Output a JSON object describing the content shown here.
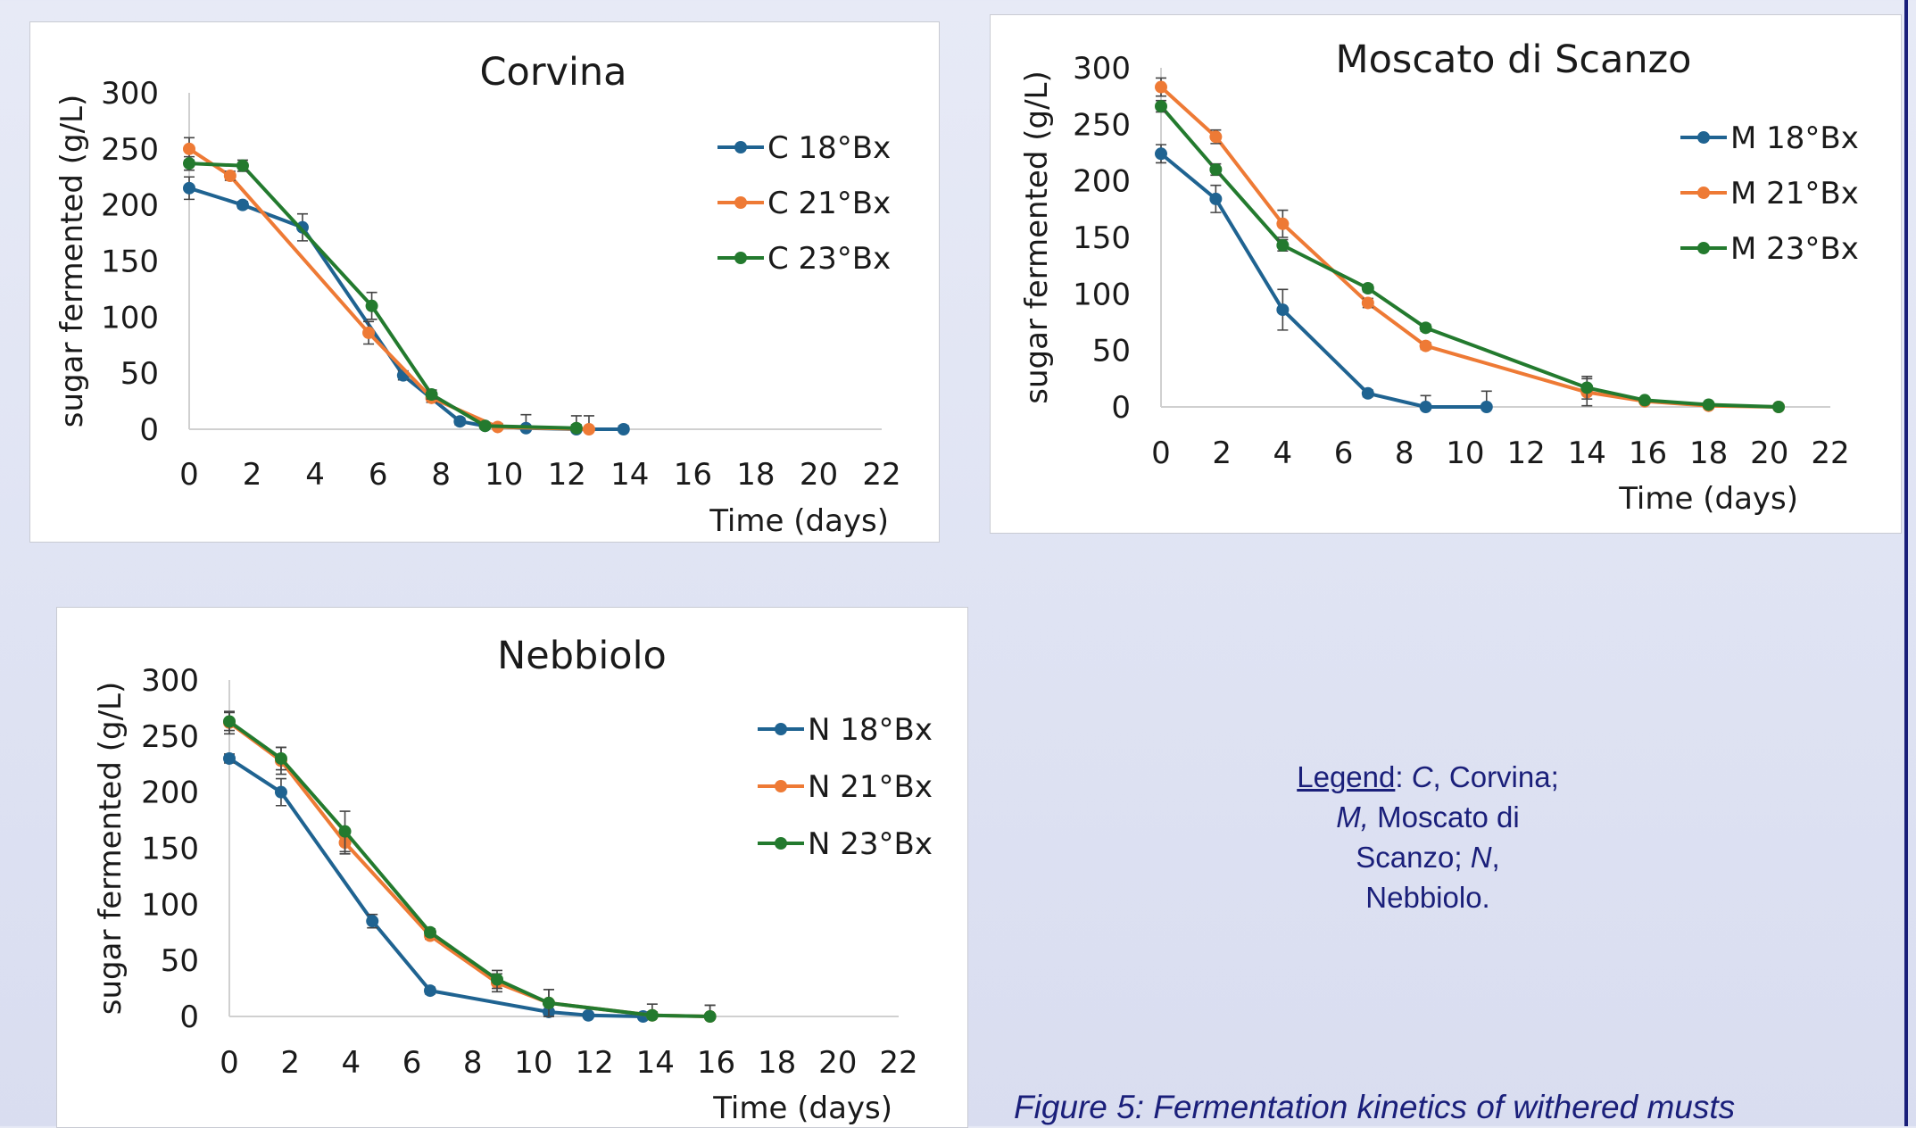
{
  "legend_note": {
    "key": "Legend",
    "colon": ": ",
    "c_abbr": "C",
    "c_name": ", Corvina;",
    "m_abbr": "M,",
    "m_name": " Moscato di",
    "line3": "Scanzo; ",
    "n_abbr": "N",
    "n_comma": ",",
    "line4": "Nebbiolo."
  },
  "caption": "Figure 5: Fermentation kinetics of withered musts",
  "colors": {
    "18": "#1f6391",
    "21": "#ee7a35",
    "23": "#237a2e",
    "accent": "#1a1f7a"
  },
  "chart_data": [
    {
      "type": "line",
      "title": "Corvina",
      "xlabel": "Time (days)",
      "ylabel": "sugar fermented (g/L)",
      "xlim": [
        0,
        22
      ],
      "ylim": [
        0,
        300
      ],
      "xticks": [
        "0",
        "2",
        "4",
        "6",
        "8",
        "10",
        "12",
        "14",
        "16",
        "18",
        "20",
        "22"
      ],
      "yticks": [
        "0",
        "50",
        "100",
        "150",
        "200",
        "250",
        "300"
      ],
      "legend_position": "right",
      "series": [
        {
          "name": "C 18°Bx",
          "color": "#1f6391",
          "x": [
            0,
            1.7,
            3.6,
            6.8,
            8.6,
            9.4,
            10.7,
            12.3,
            13.8
          ],
          "y": [
            215,
            200,
            180,
            48,
            7,
            3,
            1,
            0,
            0
          ],
          "err": [
            10,
            3,
            12,
            4,
            3,
            2,
            12,
            12,
            3
          ]
        },
        {
          "name": "C 21°Bx",
          "color": "#ee7a35",
          "x": [
            0,
            1.3,
            5.7,
            7.7,
            9.8,
            12.7
          ],
          "y": [
            250,
            226,
            86,
            28,
            2,
            0
          ],
          "err": [
            10,
            4,
            10,
            4,
            3,
            12
          ]
        },
        {
          "name": "C 23°Bx",
          "color": "#237a2e",
          "x": [
            0,
            1.7,
            5.8,
            7.7,
            9.4,
            12.3
          ],
          "y": [
            237,
            235,
            110,
            31,
            3,
            1
          ],
          "err": [
            6,
            5,
            12,
            4,
            2,
            3
          ]
        }
      ]
    },
    {
      "type": "line",
      "title": "Moscato di Scanzo",
      "xlabel": "Time (days)",
      "ylabel": "sugar fermented (g/L)",
      "xlim": [
        0,
        22
      ],
      "ylim": [
        0,
        300
      ],
      "xticks": [
        "0",
        "2",
        "4",
        "6",
        "8",
        "10",
        "12",
        "14",
        "16",
        "18",
        "20",
        "22"
      ],
      "yticks": [
        "0",
        "50",
        "100",
        "150",
        "200",
        "250",
        "300"
      ],
      "legend_position": "right",
      "series": [
        {
          "name": "M 18°Bx",
          "color": "#1f6391",
          "x": [
            0,
            1.8,
            4.0,
            6.8,
            8.7,
            10.7
          ],
          "y": [
            224,
            184,
            86,
            12,
            0,
            0
          ],
          "err": [
            8,
            12,
            18,
            3,
            10,
            14
          ]
        },
        {
          "name": "M 21°Bx",
          "color": "#ee7a35",
          "x": [
            0,
            1.8,
            4.0,
            6.8,
            8.7,
            14.0,
            15.9,
            18.0,
            20.3
          ],
          "y": [
            283,
            239,
            162,
            92,
            54,
            13,
            5,
            1,
            0
          ],
          "err": [
            8,
            6,
            12,
            4,
            3,
            12,
            2,
            2,
            2
          ]
        },
        {
          "name": "M 23°Bx",
          "color": "#237a2e",
          "x": [
            0,
            1.8,
            4.0,
            6.8,
            8.7,
            14.0,
            15.9,
            18.0,
            20.3
          ],
          "y": [
            266,
            210,
            143,
            105,
            70,
            17,
            6,
            2,
            0
          ],
          "err": [
            5,
            5,
            5,
            3,
            3,
            10,
            2,
            2,
            2
          ]
        }
      ]
    },
    {
      "type": "line",
      "title": "Nebbiolo",
      "xlabel": "Time (days)",
      "ylabel": "sugar fermented (g/L)",
      "xlim": [
        0,
        22
      ],
      "ylim": [
        0,
        300
      ],
      "xticks": [
        "0",
        "2",
        "4",
        "6",
        "8",
        "10",
        "12",
        "14",
        "16",
        "18",
        "20",
        "22"
      ],
      "yticks": [
        "0",
        "50",
        "100",
        "150",
        "200",
        "250",
        "300"
      ],
      "legend_position": "right",
      "series": [
        {
          "name": "N 18°Bx",
          "color": "#1f6391",
          "x": [
            0,
            1.7,
            4.7,
            6.6,
            10.5,
            11.8,
            13.6
          ],
          "y": [
            230,
            200,
            85,
            23,
            4,
            1,
            0
          ],
          "err": [
            4,
            12,
            6,
            3,
            2,
            2,
            2
          ]
        },
        {
          "name": "N 21°Bx",
          "color": "#ee7a35",
          "x": [
            0,
            1.7,
            3.8,
            6.6,
            8.8,
            10.5,
            13.9,
            15.8
          ],
          "y": [
            262,
            228,
            155,
            72,
            30,
            12,
            1,
            0
          ],
          "err": [
            10,
            12,
            10,
            3,
            8,
            12,
            10,
            10
          ]
        },
        {
          "name": "N 23°Bx",
          "color": "#237a2e",
          "x": [
            0,
            1.7,
            3.8,
            6.6,
            8.8,
            10.5,
            13.9,
            15.8
          ],
          "y": [
            263,
            230,
            165,
            75,
            33,
            12,
            1,
            0
          ],
          "err": [
            8,
            10,
            18,
            3,
            8,
            12,
            3,
            10
          ]
        }
      ]
    }
  ]
}
